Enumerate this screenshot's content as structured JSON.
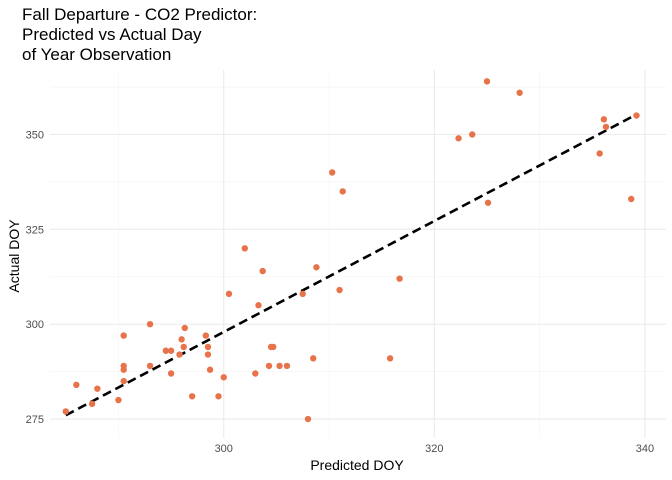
{
  "chart_data": {
    "type": "scatter",
    "title_lines": [
      "Fall Departure - CO2 Predictor:",
      "Predicted vs Actual Day",
      "of Year Observation"
    ],
    "xlabel": "Predicted DOY",
    "ylabel": "Actual DOY",
    "xlim": [
      283.5,
      342
    ],
    "ylim": [
      270,
      367
    ],
    "x_ticks": [
      300,
      320,
      340
    ],
    "y_ticks": [
      275,
      300,
      325,
      350
    ],
    "grid": true,
    "point_color": "#e8734a",
    "line_color": "#000000",
    "reference_line": {
      "style": "dashed",
      "from": [
        285,
        276
      ],
      "to": [
        339,
        355
      ]
    },
    "points": [
      [
        285,
        277
      ],
      [
        286,
        284
      ],
      [
        287.5,
        279
      ],
      [
        288,
        283
      ],
      [
        290,
        280
      ],
      [
        290.5,
        285
      ],
      [
        290.5,
        288
      ],
      [
        290.5,
        289
      ],
      [
        290.5,
        297
      ],
      [
        293,
        300
      ],
      [
        293,
        289
      ],
      [
        294.5,
        293
      ],
      [
        295,
        293
      ],
      [
        295,
        287
      ],
      [
        295.8,
        292
      ],
      [
        296,
        296
      ],
      [
        296.2,
        294
      ],
      [
        296.3,
        299
      ],
      [
        297,
        281
      ],
      [
        298.3,
        297
      ],
      [
        298.5,
        292
      ],
      [
        298.5,
        294
      ],
      [
        298.7,
        288
      ],
      [
        299.5,
        281
      ],
      [
        300,
        286
      ],
      [
        300.5,
        308
      ],
      [
        302,
        320
      ],
      [
        303,
        287
      ],
      [
        303.3,
        305
      ],
      [
        303.7,
        314
      ],
      [
        304.3,
        289
      ],
      [
        304.5,
        294
      ],
      [
        304.7,
        294
      ],
      [
        305.3,
        289
      ],
      [
        306,
        289
      ],
      [
        307.5,
        308
      ],
      [
        308,
        275
      ],
      [
        308.5,
        291
      ],
      [
        308.8,
        315
      ],
      [
        310.3,
        340
      ],
      [
        311,
        309
      ],
      [
        311.3,
        335
      ],
      [
        315.8,
        291
      ],
      [
        316.7,
        312
      ],
      [
        322.3,
        349
      ],
      [
        323.6,
        350
      ],
      [
        325,
        364
      ],
      [
        325.1,
        332
      ],
      [
        328.1,
        361
      ],
      [
        335.7,
        345
      ],
      [
        336.1,
        354
      ],
      [
        336.3,
        352
      ],
      [
        338.7,
        333
      ],
      [
        339.2,
        355
      ]
    ]
  }
}
